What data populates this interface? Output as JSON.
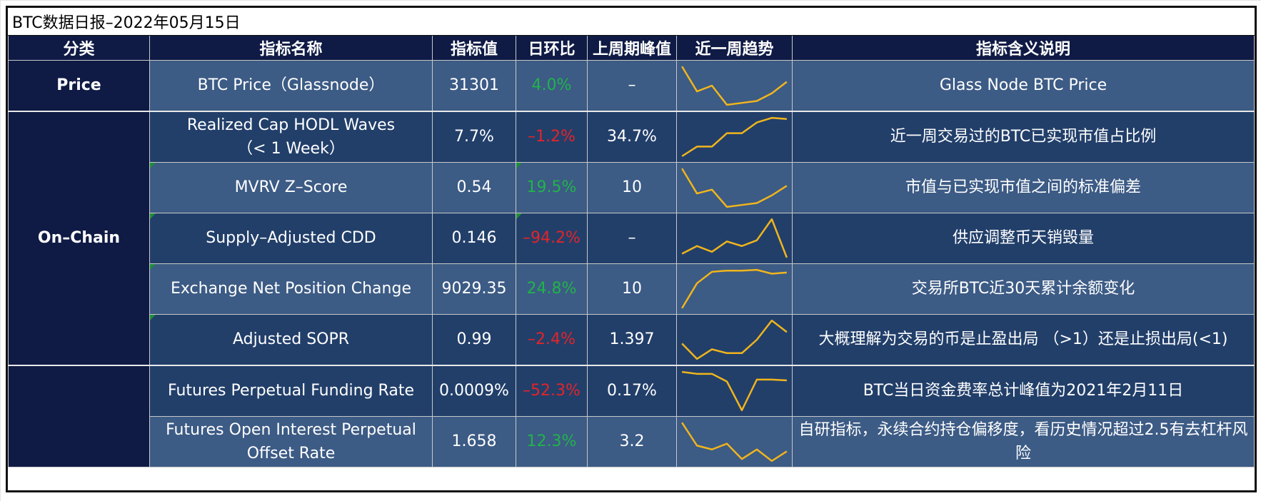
{
  "title": "BTC数据日报–2022年05月15日",
  "headers": [
    "分类",
    "指标名称",
    "指标值",
    "日环比",
    "上周期峰值",
    "近一周趋势",
    "指标含义说明"
  ],
  "categories": {
    "price": "Price",
    "onchain": "On–Chain",
    "derivatives": ""
  },
  "colors": {
    "header_bg": "#0f1b45",
    "row_light": "#3c5b85",
    "row_dark": "#223f6a",
    "positive": "#21b34a",
    "negative": "#e2242a",
    "spark": "#f0b51c"
  },
  "rows": [
    {
      "name": "BTC Price（Glassnode）",
      "value": "31301",
      "dod": "4.0%",
      "dir": "pos",
      "peak": "–",
      "desc": "Glass Node BTC Price",
      "trend": [
        1.0,
        0.35,
        0.5,
        0.0,
        0.05,
        0.1,
        0.3,
        0.6
      ]
    },
    {
      "name": "Realized Cap HODL Waves\n（< 1 Week）",
      "value": "7.7%",
      "dod": "–1.2%",
      "dir": "neg",
      "peak": "34.7%",
      "desc": "近一周交易过的BTC已实现市值占比例",
      "trend": [
        0.0,
        0.25,
        0.25,
        0.6,
        0.6,
        0.88,
        1.0,
        0.97
      ]
    },
    {
      "name": "MVRV Z–Score",
      "value": "0.54",
      "dod": "19.5%",
      "dir": "pos",
      "peak": "10",
      "desc": "市值与已实现市值之间的标准偏差",
      "trend": [
        1.0,
        0.35,
        0.45,
        0.0,
        0.05,
        0.1,
        0.3,
        0.55
      ]
    },
    {
      "name": "Supply–Adjusted CDD",
      "value": "0.146",
      "dod": "–94.2%",
      "dir": "neg",
      "peak": "–",
      "desc": "供应调整币天销毁量",
      "trend": [
        0.1,
        0.3,
        0.15,
        0.42,
        0.3,
        0.45,
        1.0,
        0.0
      ]
    },
    {
      "name": "Exchange Net Position Change",
      "value": "9029.35",
      "dod": "24.8%",
      "dir": "pos",
      "peak": "10",
      "desc": "交易所BTC近30天累计余额变化",
      "trend": [
        0.0,
        0.65,
        0.95,
        0.98,
        0.98,
        1.0,
        0.9,
        0.93
      ]
    },
    {
      "name": "Adjusted SOPR",
      "value": "0.99",
      "dod": "–2.4%",
      "dir": "neg",
      "peak": "1.397",
      "desc": "大概理解为交易的币是止盈出局 （>1）还是止损出局(<1)",
      "trend": [
        0.4,
        0.0,
        0.25,
        0.15,
        0.15,
        0.5,
        1.0,
        0.7
      ]
    },
    {
      "name": "Futures Perpetual Funding Rate",
      "value": "0.0009%",
      "dod": "–52.3%",
      "dir": "neg",
      "peak": "0.17%",
      "desc": "BTC当日资金费率总计峰值为2021年2月11日",
      "trend": [
        1.0,
        0.95,
        0.95,
        0.75,
        0.0,
        0.8,
        0.8,
        0.78
      ]
    },
    {
      "name": "Futures Open Interest Perpetual\nOffset Rate",
      "value": "1.658",
      "dod": "12.3%",
      "dir": "pos",
      "peak": "3.2",
      "desc": "自研指标，永续合约持仓偏移度，看历史情况超过2.5有去杠杆风险",
      "trend": [
        1.0,
        0.4,
        0.3,
        0.45,
        0.05,
        0.3,
        0.0,
        0.25
      ]
    }
  ]
}
